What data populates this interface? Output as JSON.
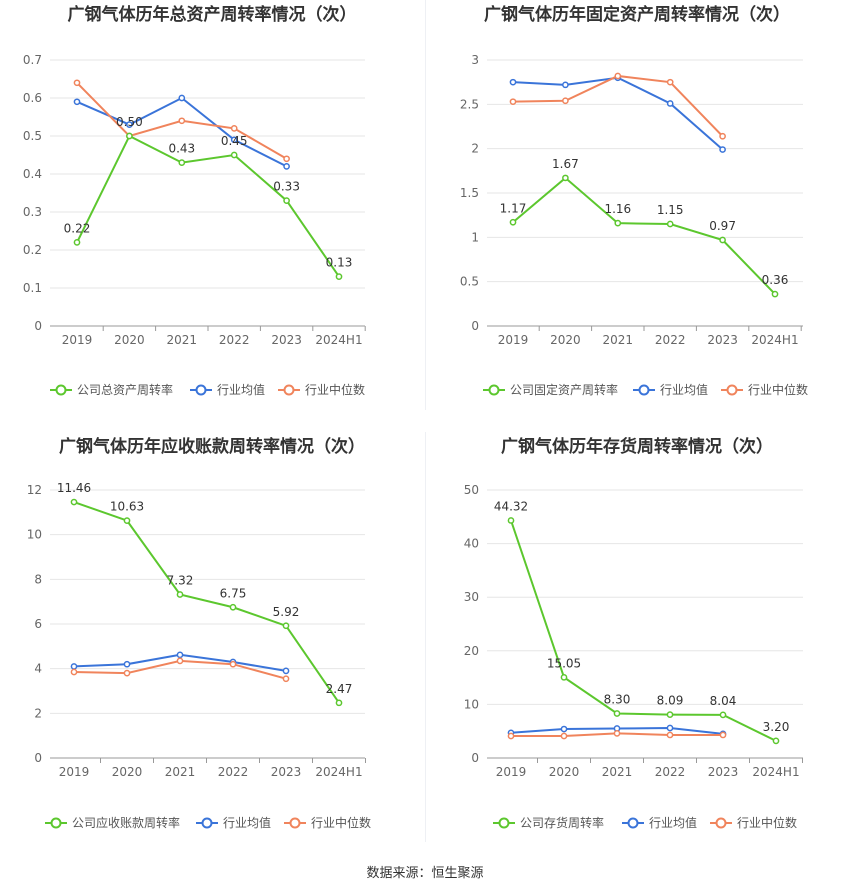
{
  "source_label": "数据来源：恒生聚源",
  "colors": {
    "company": "#5cc72e",
    "industry_avg": "#3a74d9",
    "industry_median": "#f0845c",
    "axis_text": "#666666",
    "grid": "#e6e6e6"
  },
  "chart_data": [
    {
      "type": "line",
      "title": "广钢气体历年总资产周转率情况（次）",
      "categories": [
        "2019",
        "2020",
        "2021",
        "2022",
        "2023",
        "2024H1"
      ],
      "yticks": [
        "0",
        "0.1",
        "0.2",
        "0.3",
        "0.4",
        "0.5",
        "0.6",
        "0.7"
      ],
      "ylim": [
        0,
        0.7
      ],
      "legend_position": "bottom",
      "series": [
        {
          "name": "公司总资产周转率",
          "color": "#5cc72e",
          "values": [
            0.22,
            0.5,
            0.43,
            0.45,
            0.33,
            0.13
          ],
          "labels": [
            "0.22",
            "0.50",
            "0.43",
            "0.45",
            "0.33",
            "0.13"
          ]
        },
        {
          "name": "行业均值",
          "color": "#3a74d9",
          "values": [
            0.59,
            0.53,
            0.6,
            0.49,
            0.42,
            null
          ],
          "labels": []
        },
        {
          "name": "行业中位数",
          "color": "#f0845c",
          "values": [
            0.64,
            0.5,
            0.54,
            0.52,
            0.44,
            null
          ],
          "labels": []
        }
      ]
    },
    {
      "type": "line",
      "title": "广钢气体历年固定资产周转率情况（次）",
      "categories": [
        "2019",
        "2020",
        "2021",
        "2022",
        "2023",
        "2024H1"
      ],
      "yticks": [
        "0",
        "0.5",
        "1",
        "1.5",
        "2",
        "2.5",
        "3"
      ],
      "ylim": [
        0,
        3
      ],
      "legend_position": "bottom",
      "series": [
        {
          "name": "公司固定资产周转率",
          "color": "#5cc72e",
          "values": [
            1.17,
            1.67,
            1.16,
            1.15,
            0.97,
            0.36
          ],
          "labels": [
            "1.17",
            "1.67",
            "1.16",
            "1.15",
            "0.97",
            "0.36"
          ]
        },
        {
          "name": "行业均值",
          "color": "#3a74d9",
          "values": [
            2.75,
            2.72,
            2.8,
            2.51,
            1.99,
            null
          ],
          "labels": []
        },
        {
          "name": "行业中位数",
          "color": "#f0845c",
          "values": [
            2.53,
            2.54,
            2.82,
            2.75,
            2.14,
            null
          ],
          "labels": []
        }
      ]
    },
    {
      "type": "line",
      "title": "广钢气体历年应收账款周转率情况（次）",
      "categories": [
        "2019",
        "2020",
        "2021",
        "2022",
        "2023",
        "2024H1"
      ],
      "yticks": [
        "0",
        "2",
        "4",
        "6",
        "8",
        "10",
        "12"
      ],
      "ylim": [
        0,
        12
      ],
      "legend_position": "bottom",
      "series": [
        {
          "name": "公司应收账款周转率",
          "color": "#5cc72e",
          "values": [
            11.46,
            10.63,
            7.32,
            6.75,
            5.92,
            2.47
          ],
          "labels": [
            "11.46",
            "10.63",
            "7.32",
            "6.75",
            "5.92",
            "2.47"
          ]
        },
        {
          "name": "行业均值",
          "color": "#3a74d9",
          "values": [
            4.1,
            4.2,
            4.62,
            4.3,
            3.9,
            null
          ],
          "labels": []
        },
        {
          "name": "行业中位数",
          "color": "#f0845c",
          "values": [
            3.85,
            3.8,
            4.35,
            4.2,
            3.55,
            null
          ],
          "labels": []
        }
      ]
    },
    {
      "type": "line",
      "title": "广钢气体历年存货周转率情况（次）",
      "categories": [
        "2019",
        "2020",
        "2021",
        "2022",
        "2023",
        "2024H1"
      ],
      "yticks": [
        "0",
        "10",
        "20",
        "30",
        "40",
        "50"
      ],
      "ylim": [
        0,
        50
      ],
      "legend_position": "bottom",
      "series": [
        {
          "name": "公司存货周转率",
          "color": "#5cc72e",
          "values": [
            44.32,
            15.05,
            8.3,
            8.09,
            8.04,
            3.2
          ],
          "labels": [
            "44.32",
            "15.05",
            "8.30",
            "8.09",
            "8.04",
            "3.20"
          ]
        },
        {
          "name": "行业均值",
          "color": "#3a74d9",
          "values": [
            4.7,
            5.4,
            5.5,
            5.6,
            4.5,
            null
          ],
          "labels": []
        },
        {
          "name": "行业中位数",
          "color": "#f0845c",
          "values": [
            4.1,
            4.1,
            4.6,
            4.3,
            4.3,
            null
          ],
          "labels": []
        }
      ]
    }
  ]
}
